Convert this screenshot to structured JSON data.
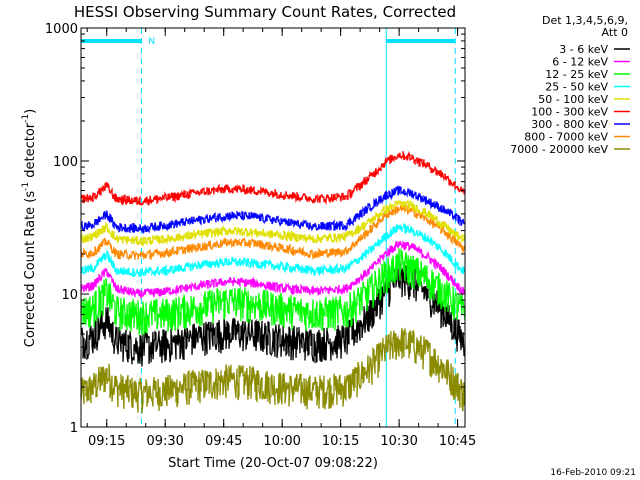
{
  "chart_data": {
    "type": "line",
    "title": "HESSI Observing Summary Count Rates, Corrected",
    "xlabel": "Start Time (20-Oct-07 09:08:22)",
    "ylabel_main": "Corrected Count Rate (s",
    "ylabel_sup1": "-1",
    "ylabel_mid": " detector",
    "ylabel_sup2": "-1",
    "ylabel_end": ")",
    "ylog": true,
    "ylim": [
      1,
      1000
    ],
    "xlim_minutes": [
      0,
      98.5
    ],
    "x_ticks": [
      {
        "label": "09:15",
        "min": 6.6
      },
      {
        "label": "09:30",
        "min": 21.6
      },
      {
        "label": "09:45",
        "min": 36.6
      },
      {
        "label": "10:00",
        "min": 51.6
      },
      {
        "label": "10:15",
        "min": 66.6
      },
      {
        "label": "10:30",
        "min": 81.6
      },
      {
        "label": "10:45",
        "min": 96.6
      }
    ],
    "y_ticks": [
      {
        "label": "1",
        "value": 1
      },
      {
        "label": "10",
        "value": 10
      },
      {
        "label": "100",
        "value": 100
      },
      {
        "label": "1000",
        "value": 1000
      }
    ],
    "legend_header": [
      "Det 1,3,4,5,6,9,",
      "Att 0"
    ],
    "timestamp": "16-Feb-2010 09:21",
    "night_marker": "N",
    "night_bars": [
      [
        0,
        15.5
      ],
      [
        78.3,
        96.0
      ]
    ],
    "dashed_lines_min": [
      15.5,
      96.0
    ],
    "solid_lines_min": [
      78.3
    ],
    "series": [
      {
        "name": "3 - 6 keV",
        "color": "#000000",
        "values": [
          [
            0,
            4.5
          ],
          [
            3,
            4.8
          ],
          [
            6.6,
            6.5
          ],
          [
            9,
            4.5
          ],
          [
            15,
            4
          ],
          [
            22,
            4.2
          ],
          [
            30,
            4.8
          ],
          [
            38,
            5.2
          ],
          [
            45,
            5.0
          ],
          [
            52,
            4.6
          ],
          [
            60,
            4.3
          ],
          [
            68,
            4.6
          ],
          [
            74,
            7.0
          ],
          [
            78,
            10.5
          ],
          [
            81.6,
            13.5
          ],
          [
            85,
            12.5
          ],
          [
            89,
            10.0
          ],
          [
            93,
            7.5
          ],
          [
            96,
            5.5
          ],
          [
            98,
            4.5
          ]
        ]
      },
      {
        "name": "6 - 12 keV",
        "color": "#ff00ff",
        "values": [
          [
            0,
            11
          ],
          [
            3,
            11.5
          ],
          [
            6.6,
            15
          ],
          [
            9,
            11
          ],
          [
            15,
            10
          ],
          [
            22,
            10.5
          ],
          [
            30,
            11.5
          ],
          [
            38,
            12.5
          ],
          [
            45,
            12
          ],
          [
            52,
            11
          ],
          [
            60,
            10.5
          ],
          [
            68,
            11
          ],
          [
            74,
            15
          ],
          [
            78,
            20
          ],
          [
            81.6,
            24
          ],
          [
            85,
            22.5
          ],
          [
            89,
            19
          ],
          [
            93,
            15
          ],
          [
            96,
            12
          ],
          [
            98,
            10.5
          ]
        ]
      },
      {
        "name": "12 - 25 keV",
        "color": "#00ff00",
        "values": [
          [
            0,
            7.5
          ],
          [
            3,
            7.8
          ],
          [
            6.6,
            10.5
          ],
          [
            9,
            7.5
          ],
          [
            15,
            7
          ],
          [
            22,
            7.2
          ],
          [
            30,
            8
          ],
          [
            38,
            9
          ],
          [
            45,
            8.5
          ],
          [
            52,
            7.8
          ],
          [
            60,
            7.3
          ],
          [
            68,
            7.5
          ],
          [
            74,
            10.5
          ],
          [
            78,
            14
          ],
          [
            81.6,
            17
          ],
          [
            85,
            15.5
          ],
          [
            89,
            13
          ],
          [
            93,
            10.5
          ],
          [
            96,
            8.5
          ],
          [
            98,
            7.5
          ]
        ]
      },
      {
        "name": "25 - 50 keV",
        "color": "#00ffff",
        "values": [
          [
            0,
            15
          ],
          [
            3,
            15.5
          ],
          [
            6.6,
            20
          ],
          [
            9,
            15
          ],
          [
            15,
            14.5
          ],
          [
            22,
            15
          ],
          [
            30,
            16.5
          ],
          [
            38,
            17.5
          ],
          [
            45,
            17
          ],
          [
            52,
            16
          ],
          [
            60,
            15
          ],
          [
            68,
            15.5
          ],
          [
            74,
            21
          ],
          [
            78,
            27
          ],
          [
            81.6,
            32
          ],
          [
            85,
            30
          ],
          [
            89,
            26
          ],
          [
            93,
            21
          ],
          [
            96,
            17
          ],
          [
            98,
            15
          ]
        ]
      },
      {
        "name": "50 - 100 keV",
        "color": "#e0e000",
        "values": [
          [
            0,
            26
          ],
          [
            3,
            27
          ],
          [
            6.6,
            32
          ],
          [
            9,
            26
          ],
          [
            15,
            25
          ],
          [
            22,
            26
          ],
          [
            30,
            28
          ],
          [
            38,
            30
          ],
          [
            45,
            29
          ],
          [
            52,
            27.5
          ],
          [
            60,
            26
          ],
          [
            68,
            27
          ],
          [
            74,
            35
          ],
          [
            78,
            43
          ],
          [
            81.6,
            48
          ],
          [
            85,
            46
          ],
          [
            89,
            40
          ],
          [
            93,
            33
          ],
          [
            96,
            28
          ],
          [
            98,
            26
          ]
        ]
      },
      {
        "name": "100 - 300 keV",
        "color": "#ff0000",
        "values": [
          [
            0,
            52
          ],
          [
            3,
            53
          ],
          [
            6.6,
            65
          ],
          [
            9,
            52
          ],
          [
            15,
            50
          ],
          [
            22,
            53
          ],
          [
            30,
            58
          ],
          [
            38,
            62
          ],
          [
            45,
            60
          ],
          [
            52,
            56
          ],
          [
            60,
            52
          ],
          [
            68,
            54
          ],
          [
            74,
            75
          ],
          [
            78,
            98
          ],
          [
            81.6,
            112
          ],
          [
            85,
            106
          ],
          [
            89,
            92
          ],
          [
            93,
            78
          ],
          [
            96,
            66
          ],
          [
            98,
            58
          ]
        ]
      },
      {
        "name": "300 - 800 keV",
        "color": "#0000ff",
        "values": [
          [
            0,
            32
          ],
          [
            3,
            33
          ],
          [
            6.6,
            40
          ],
          [
            9,
            32
          ],
          [
            15,
            31
          ],
          [
            22,
            33
          ],
          [
            30,
            36
          ],
          [
            38,
            39
          ],
          [
            45,
            38
          ],
          [
            52,
            35
          ],
          [
            60,
            32
          ],
          [
            68,
            33
          ],
          [
            74,
            45
          ],
          [
            78,
            55
          ],
          [
            81.6,
            60
          ],
          [
            85,
            57
          ],
          [
            89,
            50
          ],
          [
            93,
            43
          ],
          [
            96,
            38
          ],
          [
            98,
            34
          ]
        ]
      },
      {
        "name": "800 - 7000 keV",
        "color": "#ff8800",
        "values": [
          [
            0,
            20
          ],
          [
            3,
            20.5
          ],
          [
            6.6,
            25
          ],
          [
            9,
            20
          ],
          [
            15,
            19.5
          ],
          [
            22,
            20.5
          ],
          [
            30,
            22.5
          ],
          [
            38,
            24.5
          ],
          [
            45,
            24
          ],
          [
            52,
            22
          ],
          [
            60,
            20
          ],
          [
            68,
            21
          ],
          [
            74,
            30
          ],
          [
            78,
            39
          ],
          [
            81.6,
            44
          ],
          [
            85,
            42
          ],
          [
            89,
            36
          ],
          [
            93,
            30
          ],
          [
            96,
            25
          ],
          [
            98,
            22
          ]
        ]
      },
      {
        "name": "7000 - 20000 keV",
        "color": "#8b8b00",
        "values": [
          [
            0,
            1.8
          ],
          [
            3,
            2
          ],
          [
            6.6,
            2.5
          ],
          [
            9,
            2
          ],
          [
            15,
            1.8
          ],
          [
            22,
            1.9
          ],
          [
            30,
            2.1
          ],
          [
            38,
            2.3
          ],
          [
            45,
            2.2
          ],
          [
            52,
            2
          ],
          [
            60,
            1.9
          ],
          [
            68,
            2
          ],
          [
            74,
            2.8
          ],
          [
            78,
            3.8
          ],
          [
            81.6,
            4.5
          ],
          [
            85,
            4.2
          ],
          [
            89,
            3.6
          ],
          [
            93,
            2.8
          ],
          [
            96,
            2.2
          ],
          [
            98,
            1.8
          ]
        ]
      }
    ]
  }
}
